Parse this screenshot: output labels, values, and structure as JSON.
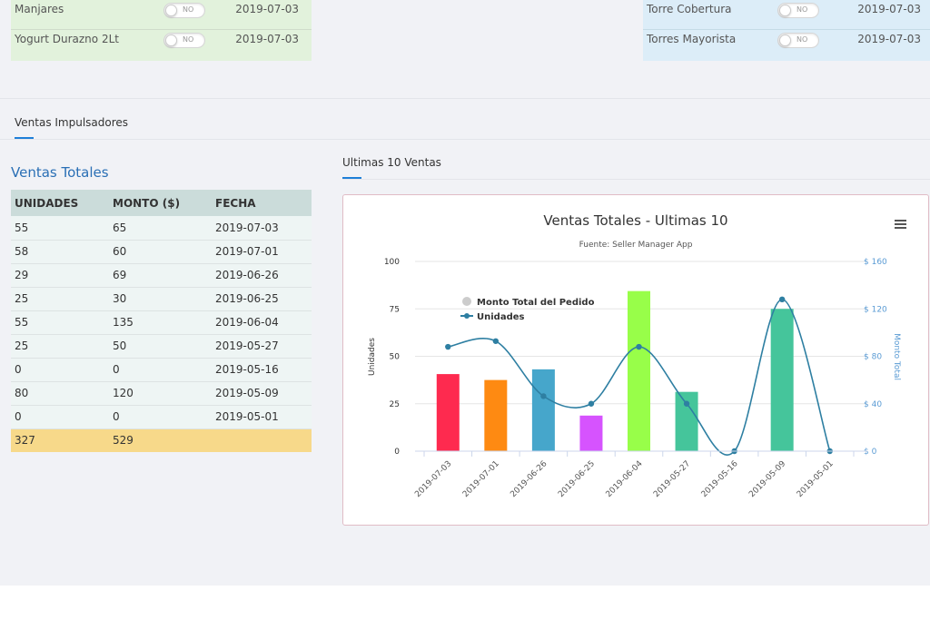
{
  "top_left_list": [
    {
      "name": "Manjares",
      "toggle": "NO",
      "date": "2019-07-03"
    },
    {
      "name": "Yogurt Durazno 2Lt",
      "toggle": "NO",
      "date": "2019-07-03"
    }
  ],
  "top_right_list": [
    {
      "name": "Torre Cobertura",
      "toggle": "NO",
      "date": "2019-07-03"
    },
    {
      "name": "Torres Mayorista",
      "toggle": "NO",
      "date": "2019-07-03"
    }
  ],
  "tabs": {
    "impulsadores": "Ventas Impulsadores",
    "ultimas": "Ultimas 10 Ventas"
  },
  "sales": {
    "title": "Ventas Totales",
    "headers": [
      "UNIDADES",
      "MONTO ($)",
      "FECHA"
    ],
    "rows": [
      [
        "55",
        "65",
        "2019-07-03"
      ],
      [
        "58",
        "60",
        "2019-07-01"
      ],
      [
        "29",
        "69",
        "2019-06-26"
      ],
      [
        "25",
        "30",
        "2019-06-25"
      ],
      [
        "55",
        "135",
        "2019-06-04"
      ],
      [
        "25",
        "50",
        "2019-05-27"
      ],
      [
        "0",
        "0",
        "2019-05-16"
      ],
      [
        "80",
        "120",
        "2019-05-09"
      ],
      [
        "0",
        "0",
        "2019-05-01"
      ]
    ],
    "total": [
      "327",
      "529",
      ""
    ]
  },
  "chart_data": {
    "type": "bar",
    "title": "Ventas Totales - Ultimas 10",
    "subtitle": "Fuente: Seller Manager App",
    "categories": [
      "2019-07-03",
      "2019-07-01",
      "2019-06-26",
      "2019-06-25",
      "2019-06-04",
      "2019-05-27",
      "2019-05-16",
      "2019-05-09",
      "2019-05-01"
    ],
    "series": [
      {
        "name": "Monto Total del Pedido",
        "type": "bar",
        "axis": "right",
        "values": [
          65,
          60,
          69,
          30,
          135,
          50,
          0,
          120,
          0
        ]
      },
      {
        "name": "Unidades",
        "type": "spline",
        "axis": "left",
        "values": [
          55,
          58,
          29,
          25,
          55,
          25,
          0,
          80,
          0
        ]
      }
    ],
    "bar_colors": [
      "#fe2a4f",
      "#fe8a12",
      "#46a6cb",
      "#d653fe",
      "#98fe49",
      "#45c59b",
      "#45c59b",
      "#45c59b",
      "#45c59b"
    ],
    "line_color": "#2e7fa2",
    "ylabel": "Unidades",
    "y2label": "Monto Total",
    "ylim": [
      0,
      100
    ],
    "y2lim": [
      0,
      160
    ],
    "yticks": [
      0,
      25,
      50,
      75,
      100
    ],
    "y2ticks": [
      "$ 0",
      "$ 40",
      "$ 80",
      "$ 120",
      "$ 160"
    ],
    "grid": true,
    "legend_position": "top-left",
    "menu_icon": "hamburger-icon"
  }
}
